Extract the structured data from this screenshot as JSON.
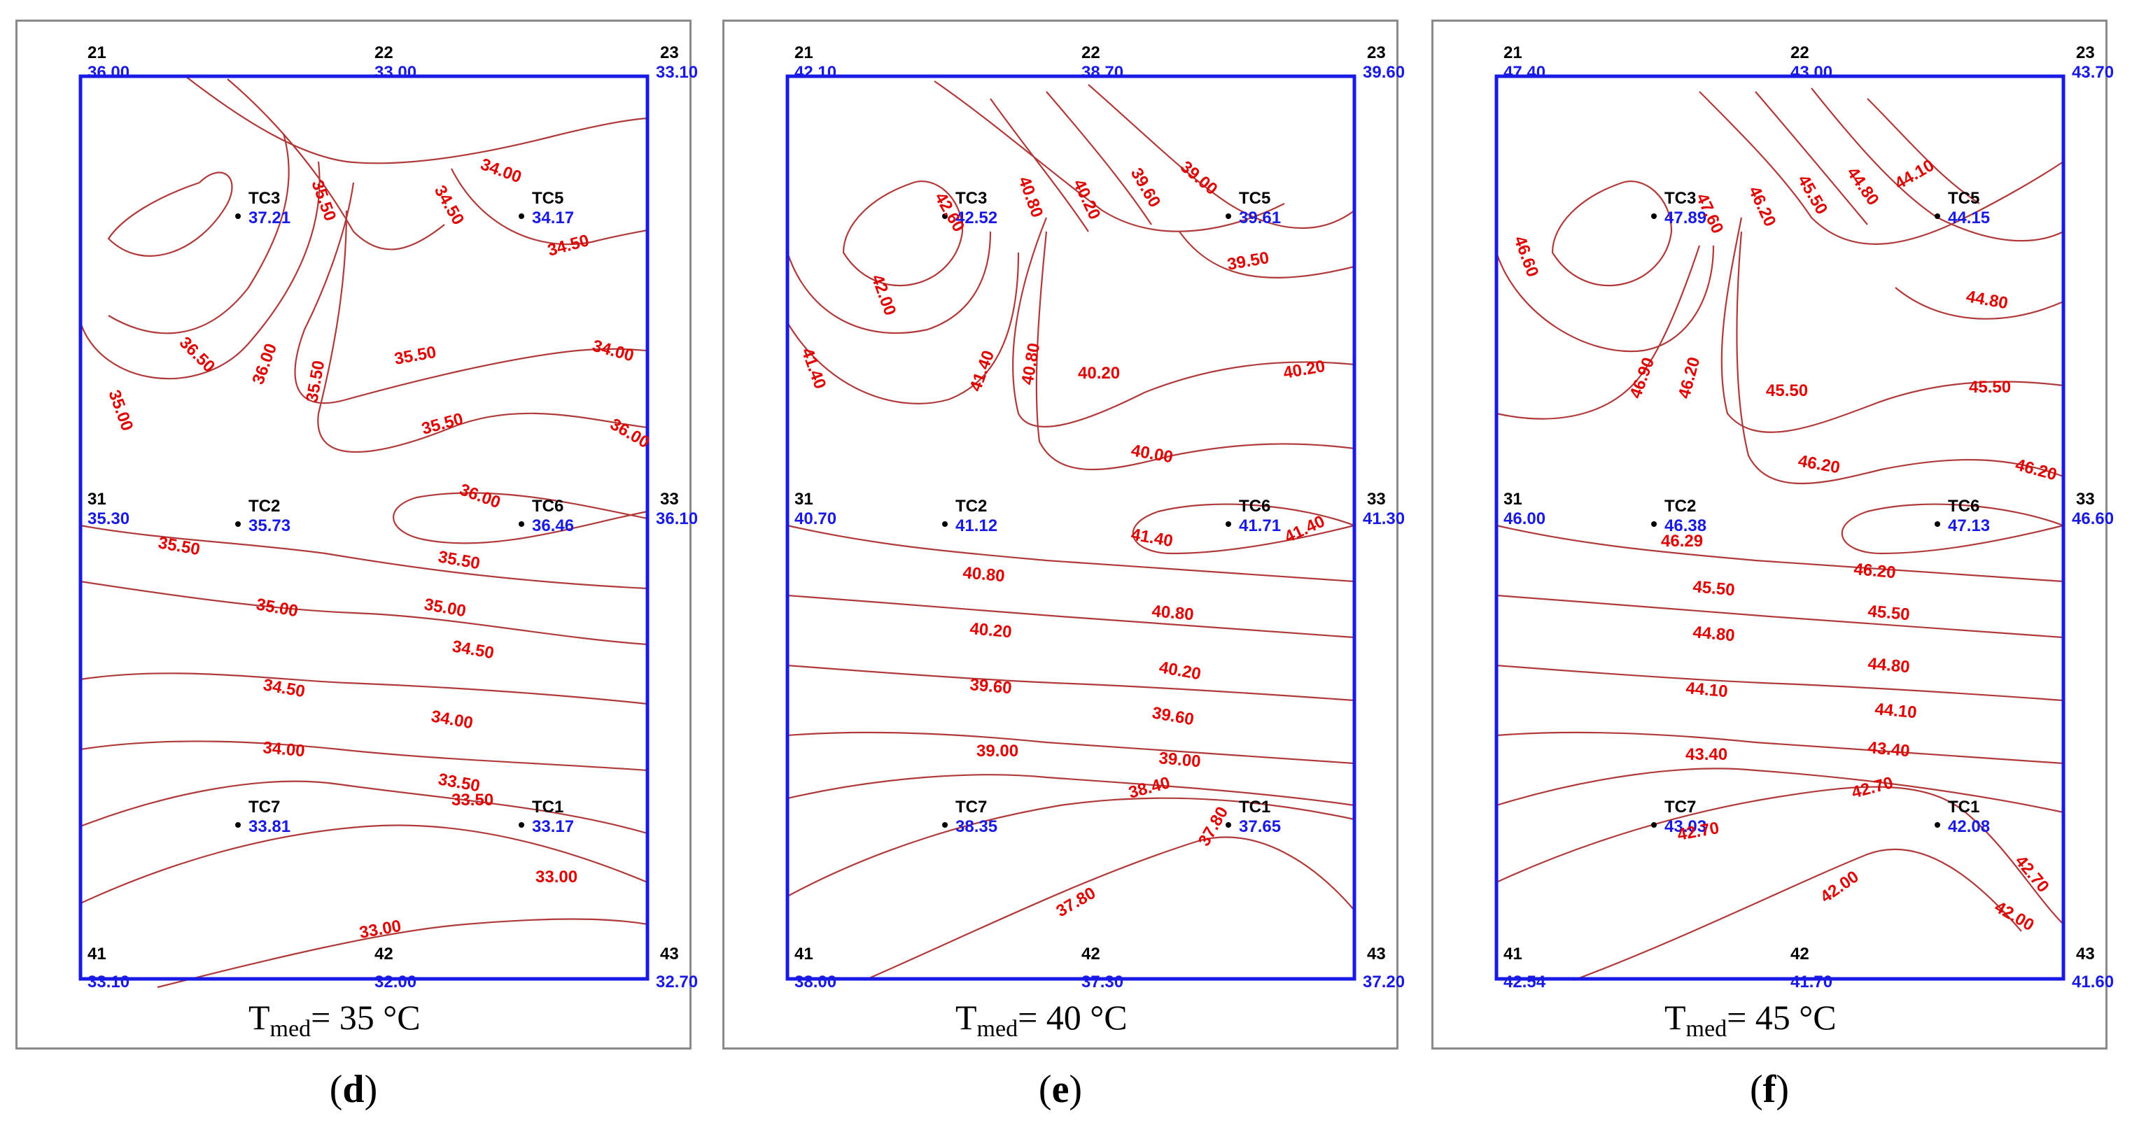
{
  "panels": [
    {
      "caption": "d",
      "tmed_value": "= 35 ",
      "tmed_unit": "°C",
      "corner_labels": {
        "tl": "21",
        "tm": "22",
        "tr": "23",
        "ml": "31",
        "mr": "33",
        "bl": "41",
        "bm": "42",
        "br": "43"
      },
      "corner_values": {
        "tl": "36.00",
        "tm": "33.00",
        "tr": "33.10",
        "ml": "35.30",
        "mr": "36.10",
        "bl": "33.10",
        "bm": "32.00",
        "br": "32.70"
      },
      "sensors": [
        {
          "label": "TC3",
          "value": "37.21"
        },
        {
          "label": "TC5",
          "value": "34.17"
        },
        {
          "label": "TC2",
          "value": "35.73"
        },
        {
          "label": "TC6",
          "value": "36.46"
        },
        {
          "label": "TC7",
          "value": "33.81"
        },
        {
          "label": "TC1",
          "value": "33.17"
        }
      ],
      "isolabels": [
        "34.00",
        "35.50",
        "34.50",
        "34.50",
        "36.50",
        "36.00",
        "35.50",
        "35.00",
        "35.50",
        "34.00",
        "35.50",
        "36.00",
        "36.00",
        "35.50",
        "35.50",
        "35.00",
        "35.00",
        "34.50",
        "34.50",
        "34.00",
        "34.00",
        "33.50",
        "33.50",
        "33.00",
        "33.00"
      ]
    },
    {
      "caption": "e",
      "tmed_value": "= 40 ",
      "tmed_unit": "°C",
      "corner_labels": {
        "tl": "21",
        "tm": "22",
        "tr": "23",
        "ml": "31",
        "mr": "33",
        "bl": "41",
        "bm": "42",
        "br": "43"
      },
      "corner_values": {
        "tl": "42.10",
        "tm": "38.70",
        "tr": "39.60",
        "ml": "40.70",
        "mr": "41.30",
        "bl": "38.00",
        "bm": "37.30",
        "br": "37.20"
      },
      "sensors": [
        {
          "label": "TC3",
          "value": "42.52"
        },
        {
          "label": "TC5",
          "value": "39.61"
        },
        {
          "label": "TC2",
          "value": "41.12"
        },
        {
          "label": "TC6",
          "value": "41.71"
        },
        {
          "label": "TC7",
          "value": "38.35"
        },
        {
          "label": "TC1",
          "value": "37.65"
        }
      ],
      "isolabels": [
        "42.60",
        "40.80",
        "40.20",
        "39.60",
        "39.00",
        "39.50",
        "42.00",
        "41.40",
        "41.40",
        "40.80",
        "40.20",
        "40.20",
        "40.00",
        "41.40",
        "41.40",
        "40.80",
        "40.80",
        "40.20",
        "40.20",
        "39.60",
        "39.60",
        "39.00",
        "39.00",
        "38.40",
        "37.80",
        "37.80"
      ]
    },
    {
      "caption": "f",
      "tmed_value": "= 45 ",
      "tmed_unit": "°C",
      "corner_labels": {
        "tl": "21",
        "tm": "22",
        "tr": "23",
        "ml": "31",
        "mr": "33",
        "bl": "41",
        "bm": "42",
        "br": "43"
      },
      "corner_values": {
        "tl": "47.40",
        "tm": "43.00",
        "tr": "43.70",
        "ml": "46.00",
        "mr": "46.60",
        "bl": "42.54",
        "bm": "41.70",
        "br": "41.60"
      },
      "sensors": [
        {
          "label": "TC3",
          "value": "47.89"
        },
        {
          "label": "TC5",
          "value": "44.15"
        },
        {
          "label": "TC2",
          "value": "46.38"
        },
        {
          "label": "TC6",
          "value": "47.13"
        },
        {
          "label": "TC7",
          "value": "43.03"
        },
        {
          "label": "TC1",
          "value": "42.08"
        }
      ],
      "isolabels": [
        "47.60",
        "46.20",
        "45.50",
        "44.80",
        "44.10",
        "46.60",
        "44.80",
        "46.90",
        "46.20",
        "45.50",
        "45.50",
        "46.20",
        "46.20",
        "46.29",
        "46.20",
        "45.50",
        "45.50",
        "44.80",
        "44.80",
        "44.10",
        "44.10",
        "43.40",
        "43.40",
        "42.70",
        "42.70",
        "42.70",
        "42.00",
        "42.00"
      ]
    }
  ],
  "colors": {
    "frame": "#1a1ae6",
    "isoline": "#b03a3a",
    "isolabel": "#e00000",
    "value": "#1a1ae6",
    "label": "#000000",
    "panel_border": "#8a8a8a"
  }
}
